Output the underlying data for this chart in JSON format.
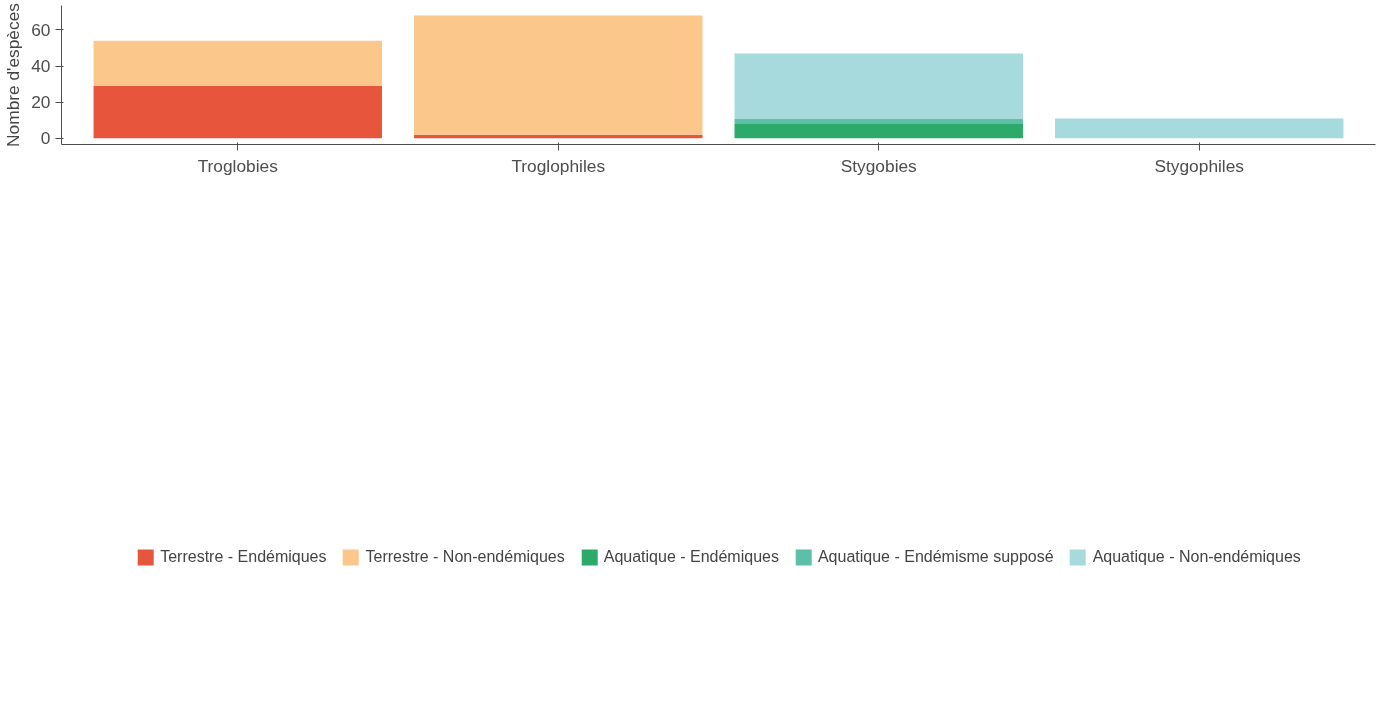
{
  "chart_data": {
    "type": "bar",
    "stacked": true,
    "ylabel": "Nombre d'espèces",
    "categories": [
      "Troglobies",
      "Troglophiles",
      "Stygobies",
      "Stygophiles"
    ],
    "series": [
      {
        "name": "Terrestre - Endémiques",
        "color": "#e8553d",
        "values": [
          29,
          2,
          0,
          0
        ]
      },
      {
        "name": "Terrestre - Non-endémiques",
        "color": "#fbc78a",
        "values": [
          25,
          66,
          0,
          0
        ]
      },
      {
        "name": "Aquatique - Endémiques",
        "color": "#2baa6a",
        "values": [
          0,
          0,
          8,
          0
        ]
      },
      {
        "name": "Aquatique - Endémisme supposé",
        "color": "#5dbfa5",
        "values": [
          0,
          0,
          3,
          0
        ]
      },
      {
        "name": "Aquatique - Non-endémiques",
        "color": "#a6dadc",
        "values": [
          0,
          0,
          36,
          11
        ]
      }
    ],
    "ylim": [
      -3.4,
      73.5
    ],
    "yticks": [
      0,
      20,
      40,
      60
    ],
    "grid": false,
    "legend": "bottom"
  }
}
